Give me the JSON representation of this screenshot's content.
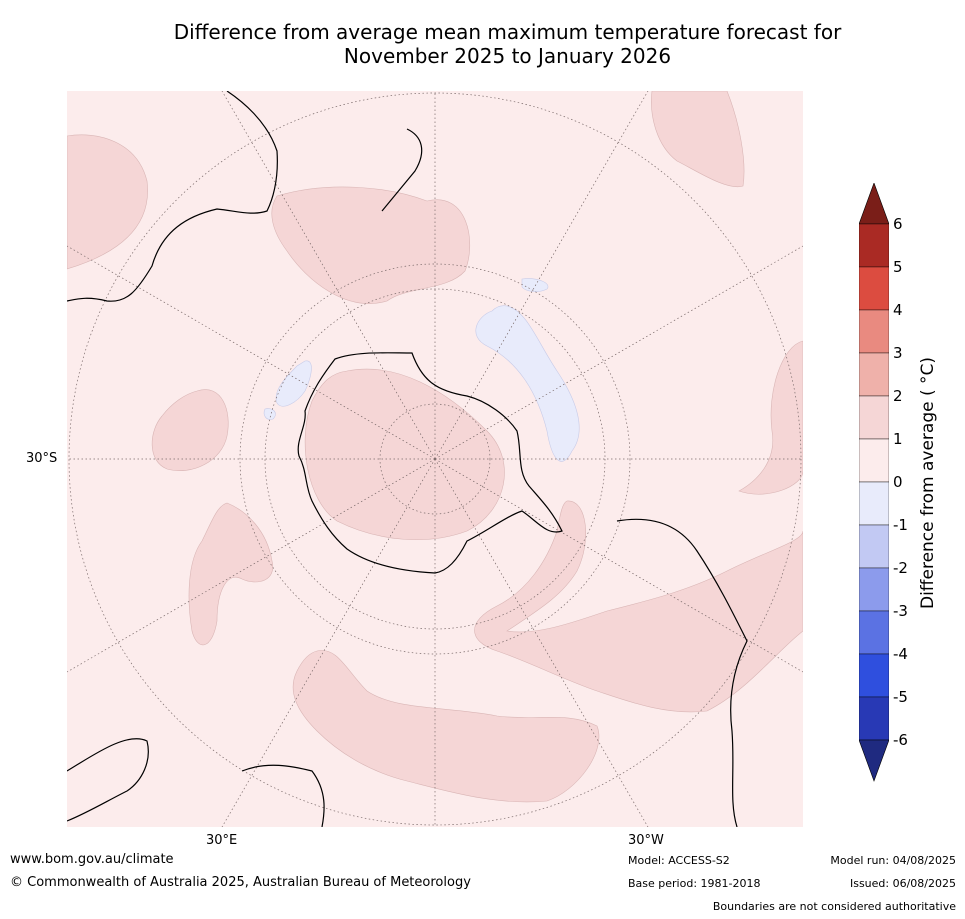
{
  "title_line1": "Difference from average mean maximum temperature forecast for",
  "title_line2": "November 2025 to January 2026",
  "map": {
    "projection": "south-polar-stereographic",
    "lat_label": "30°S",
    "lon_label_east": "30°E",
    "lon_label_west": "30°W",
    "background_category": "0 to 1",
    "warm_patches_category": "1 to 2",
    "cool_patches_category": "-1 to 0"
  },
  "colorbar": {
    "label": "Difference from average ( °C)",
    "ticks": [
      "6",
      "5",
      "4",
      "3",
      "2",
      "1",
      "0",
      "-1",
      "-2",
      "-3",
      "-4",
      "-5",
      "-6"
    ],
    "colors": [
      "#aa2a24",
      "#dc4c40",
      "#e98a80",
      "#efb1aa",
      "#f5d6d6",
      "#fcecec",
      "#e8ebfb",
      "#c2c9f3",
      "#8c9bec",
      "#5b72e3",
      "#2f4fde",
      "#2839b5"
    ],
    "over_color": "#7a1e18",
    "under_color": "#1f2a80"
  },
  "footer": {
    "url": "www.bom.gov.au/climate",
    "copyright": "© Commonwealth of Australia 2025, Australian Bureau of Meteorology",
    "model": "Model: ACCESS-S2",
    "base_period": "Base period: 1981-2018",
    "model_run": "Model run: 04/08/2025",
    "issued": "Issued: 06/08/2025",
    "disclaimer": "Boundaries are not considered authoritative"
  }
}
